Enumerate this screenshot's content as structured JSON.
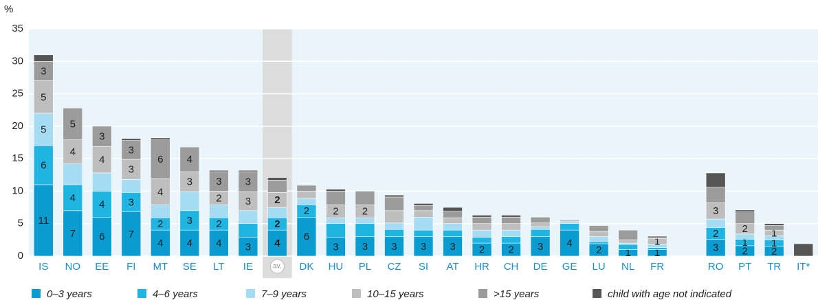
{
  "chart_data": {
    "type": "stacked_bar",
    "ylabel": "%",
    "categories": [
      "IS",
      "NO",
      "EE",
      "FI",
      "MT",
      "SE",
      "LT",
      "IE",
      "av.",
      "DK",
      "HU",
      "PL",
      "CZ",
      "SI",
      "AT",
      "HR",
      "CH",
      "DE",
      "GE",
      "LU",
      "NL",
      "FR",
      null,
      "RO",
      "PT",
      "TR",
      "IT*"
    ],
    "highlight": "av.",
    "ylim": [
      0,
      35
    ],
    "yticks": [
      0,
      5,
      10,
      15,
      20,
      25,
      30,
      35
    ],
    "grid": true,
    "legend": "bottom",
    "series": [
      {
        "name": "0–3 years",
        "color": "#0a9bd0",
        "values": [
          11,
          7,
          6,
          6.8,
          4,
          4,
          4,
          2.9,
          4,
          6,
          2.9,
          3,
          3,
          3,
          3,
          2,
          2,
          3,
          4,
          1.9,
          1,
          1,
          null,
          2.6,
          1.6,
          1.5,
          null
        ],
        "value_labels": [
          "11",
          "7",
          "6",
          "7",
          "4",
          "4",
          "4",
          "3",
          "4",
          "6",
          "3",
          "3",
          "3",
          "3",
          "3",
          "2",
          "2",
          "3",
          "4",
          "2",
          "1",
          "1",
          null,
          "3",
          "2",
          "2",
          null
        ]
      },
      {
        "name": "4–6 years",
        "color": "#1fb4e2",
        "values": [
          6,
          4,
          4,
          3,
          1.9,
          3,
          1.9,
          2.1,
          1.9,
          1.9,
          2.1,
          2,
          1.1,
          1,
          1,
          0.9,
          1,
          1.1,
          1,
          0.3,
          0.8,
          0.3,
          null,
          1.8,
          1,
          1,
          null
        ],
        "value_labels": [
          "6",
          "4",
          "4",
          "3",
          "2",
          "3",
          "2",
          null,
          "2",
          "2",
          null,
          null,
          null,
          null,
          null,
          null,
          null,
          null,
          null,
          null,
          null,
          null,
          null,
          "2",
          "1",
          "1",
          null
        ]
      },
      {
        "name": "7–9 years",
        "color": "#a5dbf3",
        "values": [
          5,
          3.2,
          2.8,
          2,
          2,
          2.9,
          2,
          2,
          1.6,
          1,
          0.9,
          0.9,
          1,
          2,
          1,
          1.1,
          1,
          0.4,
          0.3,
          0.8,
          0.2,
          0.5,
          null,
          1.3,
          0.8,
          0.6,
          null
        ],
        "value_labels": [
          "5",
          null,
          null,
          null,
          null,
          null,
          null,
          null,
          null,
          null,
          null,
          null,
          null,
          null,
          null,
          null,
          null,
          null,
          null,
          null,
          null,
          null,
          null,
          null,
          null,
          null,
          null
        ]
      },
      {
        "name": "10–15 years",
        "color": "#bebebe",
        "values": [
          5,
          3.7,
          4.1,
          3.1,
          4,
          3.1,
          2.1,
          2.9,
          2.3,
          1.1,
          2,
          2,
          1.9,
          1,
          0.9,
          1,
          1,
          0.6,
          0.3,
          0.8,
          0.5,
          0.9,
          null,
          2.5,
          1.6,
          0.9,
          null
        ],
        "value_labels": [
          "5",
          "4",
          "4",
          "3",
          "4",
          "3",
          "2",
          "3",
          "2",
          null,
          "2",
          "2",
          null,
          null,
          null,
          null,
          null,
          null,
          null,
          null,
          null,
          "1",
          null,
          "3",
          "2",
          "1",
          null
        ]
      },
      {
        "name": ">15 years",
        "color": "#9b9b9b",
        "values": [
          3,
          4.9,
          3.1,
          2.9,
          6,
          3.8,
          3,
          3.1,
          1.9,
          0.9,
          2.1,
          2.1,
          2.1,
          0.8,
          1,
          1,
          1,
          0.9,
          null,
          0.9,
          1.5,
          0.4,
          null,
          2.4,
          1.8,
          0.7,
          null
        ],
        "value_labels": [
          "3",
          "5",
          "3",
          "3",
          "6",
          "4",
          "3",
          "3",
          null,
          null,
          null,
          null,
          null,
          null,
          null,
          null,
          null,
          null,
          null,
          null,
          null,
          null,
          null,
          null,
          null,
          null,
          null
        ]
      },
      {
        "name": "child with age not indicated",
        "color": "#555555",
        "values": [
          1,
          null,
          null,
          0.3,
          0.3,
          null,
          0.2,
          0.2,
          0.4,
          null,
          0.3,
          null,
          0.3,
          0.3,
          0.6,
          0.3,
          0.3,
          null,
          null,
          null,
          null,
          null,
          null,
          2.2,
          0.3,
          0.3,
          1.9
        ],
        "value_labels": [
          null,
          null,
          null,
          null,
          null,
          null,
          null,
          null,
          null,
          null,
          null,
          null,
          null,
          null,
          null,
          null,
          null,
          null,
          null,
          null,
          null,
          null,
          null,
          null,
          null,
          null,
          null
        ]
      }
    ]
  }
}
